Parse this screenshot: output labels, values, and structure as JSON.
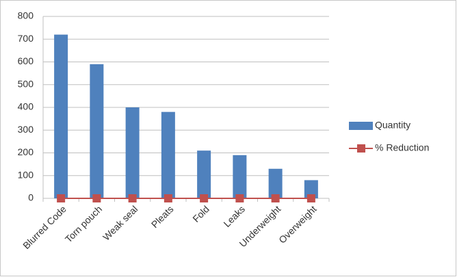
{
  "chart_data": {
    "type": "bar",
    "categories": [
      "Blurred Code",
      "Torn pouch",
      "Weak seal",
      "Pleats",
      "Fold",
      "Leaks",
      "Underweight",
      "Overweight"
    ],
    "series": [
      {
        "name": "Quantity",
        "type": "bar",
        "color": "#4f81bd",
        "values": [
          720,
          590,
          400,
          380,
          210,
          190,
          130,
          80
        ]
      },
      {
        "name": "% Reduction",
        "type": "line",
        "color": "#c0504d",
        "values": [
          0,
          0,
          0,
          0,
          0,
          0,
          0,
          0
        ]
      }
    ],
    "ylim": [
      0,
      800
    ],
    "yticks": [
      0,
      100,
      200,
      300,
      400,
      500,
      600,
      700,
      800
    ],
    "grid": true,
    "legend": "right"
  }
}
